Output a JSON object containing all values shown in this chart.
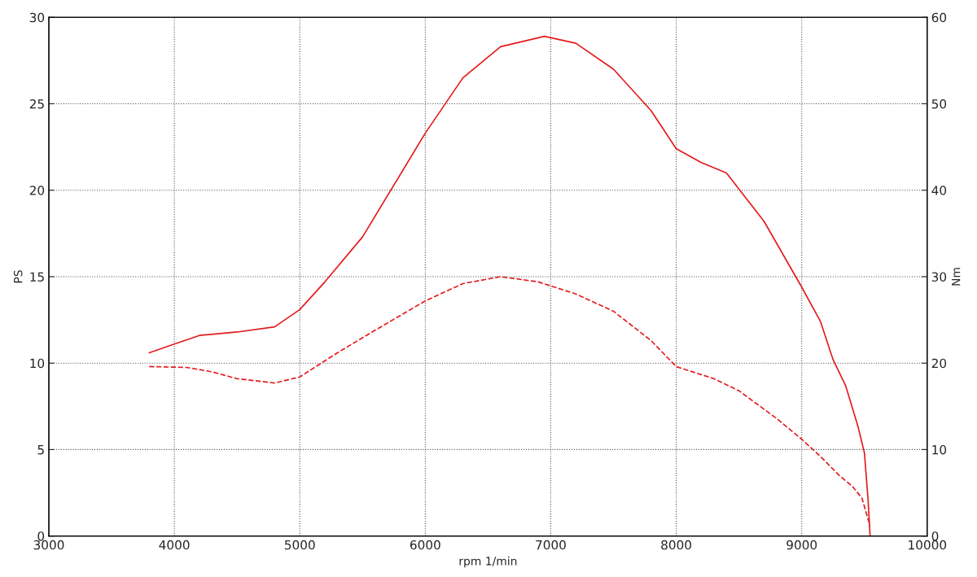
{
  "chart_data": {
    "type": "line",
    "xlabel": "rpm 1/min",
    "ylabel": "PS",
    "y2label": "Nm",
    "xlim": [
      3000,
      10000
    ],
    "xticks": [
      3000,
      4000,
      5000,
      6000,
      7000,
      8000,
      9000,
      10000
    ],
    "ylim": [
      0,
      30
    ],
    "yticks": [
      0,
      5,
      10,
      15,
      20,
      25,
      30
    ],
    "y2lim": [
      0,
      60
    ],
    "y2ticks": [
      0,
      10,
      20,
      30,
      40,
      50,
      60
    ],
    "grid": true,
    "marker": "none",
    "series": [
      {
        "color": "#e41a1c",
        "line_style": "solid",
        "x": [
          3800,
          4000,
          4200,
          4500,
          4800,
          5000,
          5200,
          5500,
          6000,
          6300,
          6600,
          6950,
          7200,
          7500,
          7800,
          8000,
          8200,
          8400,
          8700,
          9000,
          9150,
          9250,
          9350,
          9450,
          9500,
          9530,
          9545
        ],
        "values": [
          10.6,
          11.1,
          11.6,
          11.8,
          12.1,
          13.1,
          14.7,
          17.3,
          23.3,
          26.5,
          28.3,
          28.9,
          28.5,
          27.0,
          24.6,
          22.4,
          21.6,
          21.0,
          18.2,
          14.4,
          12.4,
          10.2,
          8.7,
          6.3,
          4.8,
          2,
          0
        ]
      },
      {
        "color": "#e41a1c",
        "line_style": "dashed",
        "axis": "y2",
        "x": [
          3800,
          4100,
          4300,
          4500,
          4800,
          5000,
          5300,
          5600,
          6000,
          6300,
          6600,
          6900,
          7200,
          7500,
          7800,
          8000,
          8300,
          8500,
          8800,
          9000,
          9150,
          9300,
          9400,
          9480,
          9520,
          9545
        ],
        "values": [
          19.6,
          19.5,
          19,
          18.2,
          17.7,
          18.4,
          21.2,
          23.8,
          27.2,
          29.2,
          30,
          29.4,
          28,
          26,
          22.6,
          19.6,
          18.2,
          16.8,
          13.6,
          11.2,
          9.2,
          7,
          5.8,
          4.4,
          2.4,
          1.2
        ]
      }
    ]
  }
}
